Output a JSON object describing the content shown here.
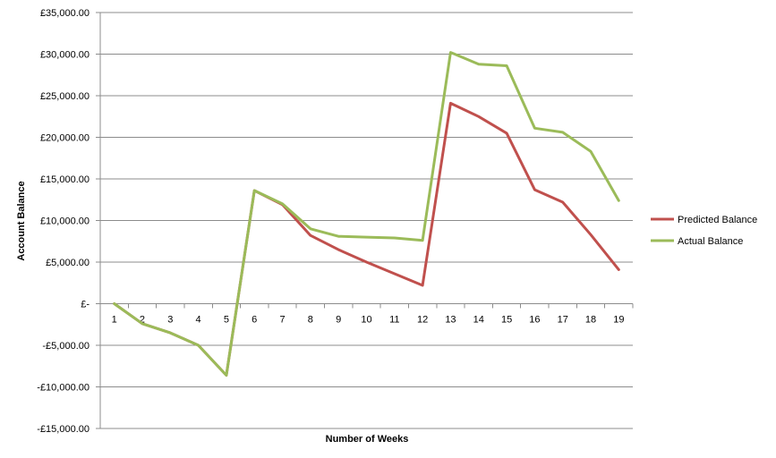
{
  "chart_data": {
    "type": "line",
    "title": "",
    "xlabel": "Number of Weeks",
    "ylabel": "Account Balance",
    "x": [
      1,
      2,
      3,
      4,
      5,
      6,
      7,
      8,
      9,
      10,
      11,
      12,
      13,
      14,
      15,
      16,
      17,
      18,
      19
    ],
    "ylim": [
      -15000,
      35000
    ],
    "ytick_step": 5000,
    "ytick_labels": [
      "-£15,000.00",
      "-£10,000.00",
      "-£5,000.00",
      "£-",
      "£5,000.00",
      "£10,000.00",
      "£15,000.00",
      "£20,000.00",
      "£25,000.00",
      "£30,000.00",
      "£35,000.00"
    ],
    "grid": true,
    "legend_position": "right",
    "series": [
      {
        "name": "Predicted Balance",
        "color": "#c0504d",
        "values": [
          0,
          -2400,
          -3500,
          -5000,
          -8600,
          13600,
          11900,
          8200,
          6500,
          5000,
          3600,
          2200,
          24100,
          22500,
          20500,
          13700,
          12200,
          8300,
          4100
        ]
      },
      {
        "name": "Actual Balance",
        "color": "#9bbb59",
        "values": [
          0,
          -2400,
          -3500,
          -5000,
          -8600,
          13600,
          12000,
          9000,
          8100,
          8000,
          7900,
          7600,
          30200,
          28800,
          28600,
          21100,
          20600,
          18300,
          12400
        ]
      }
    ]
  }
}
